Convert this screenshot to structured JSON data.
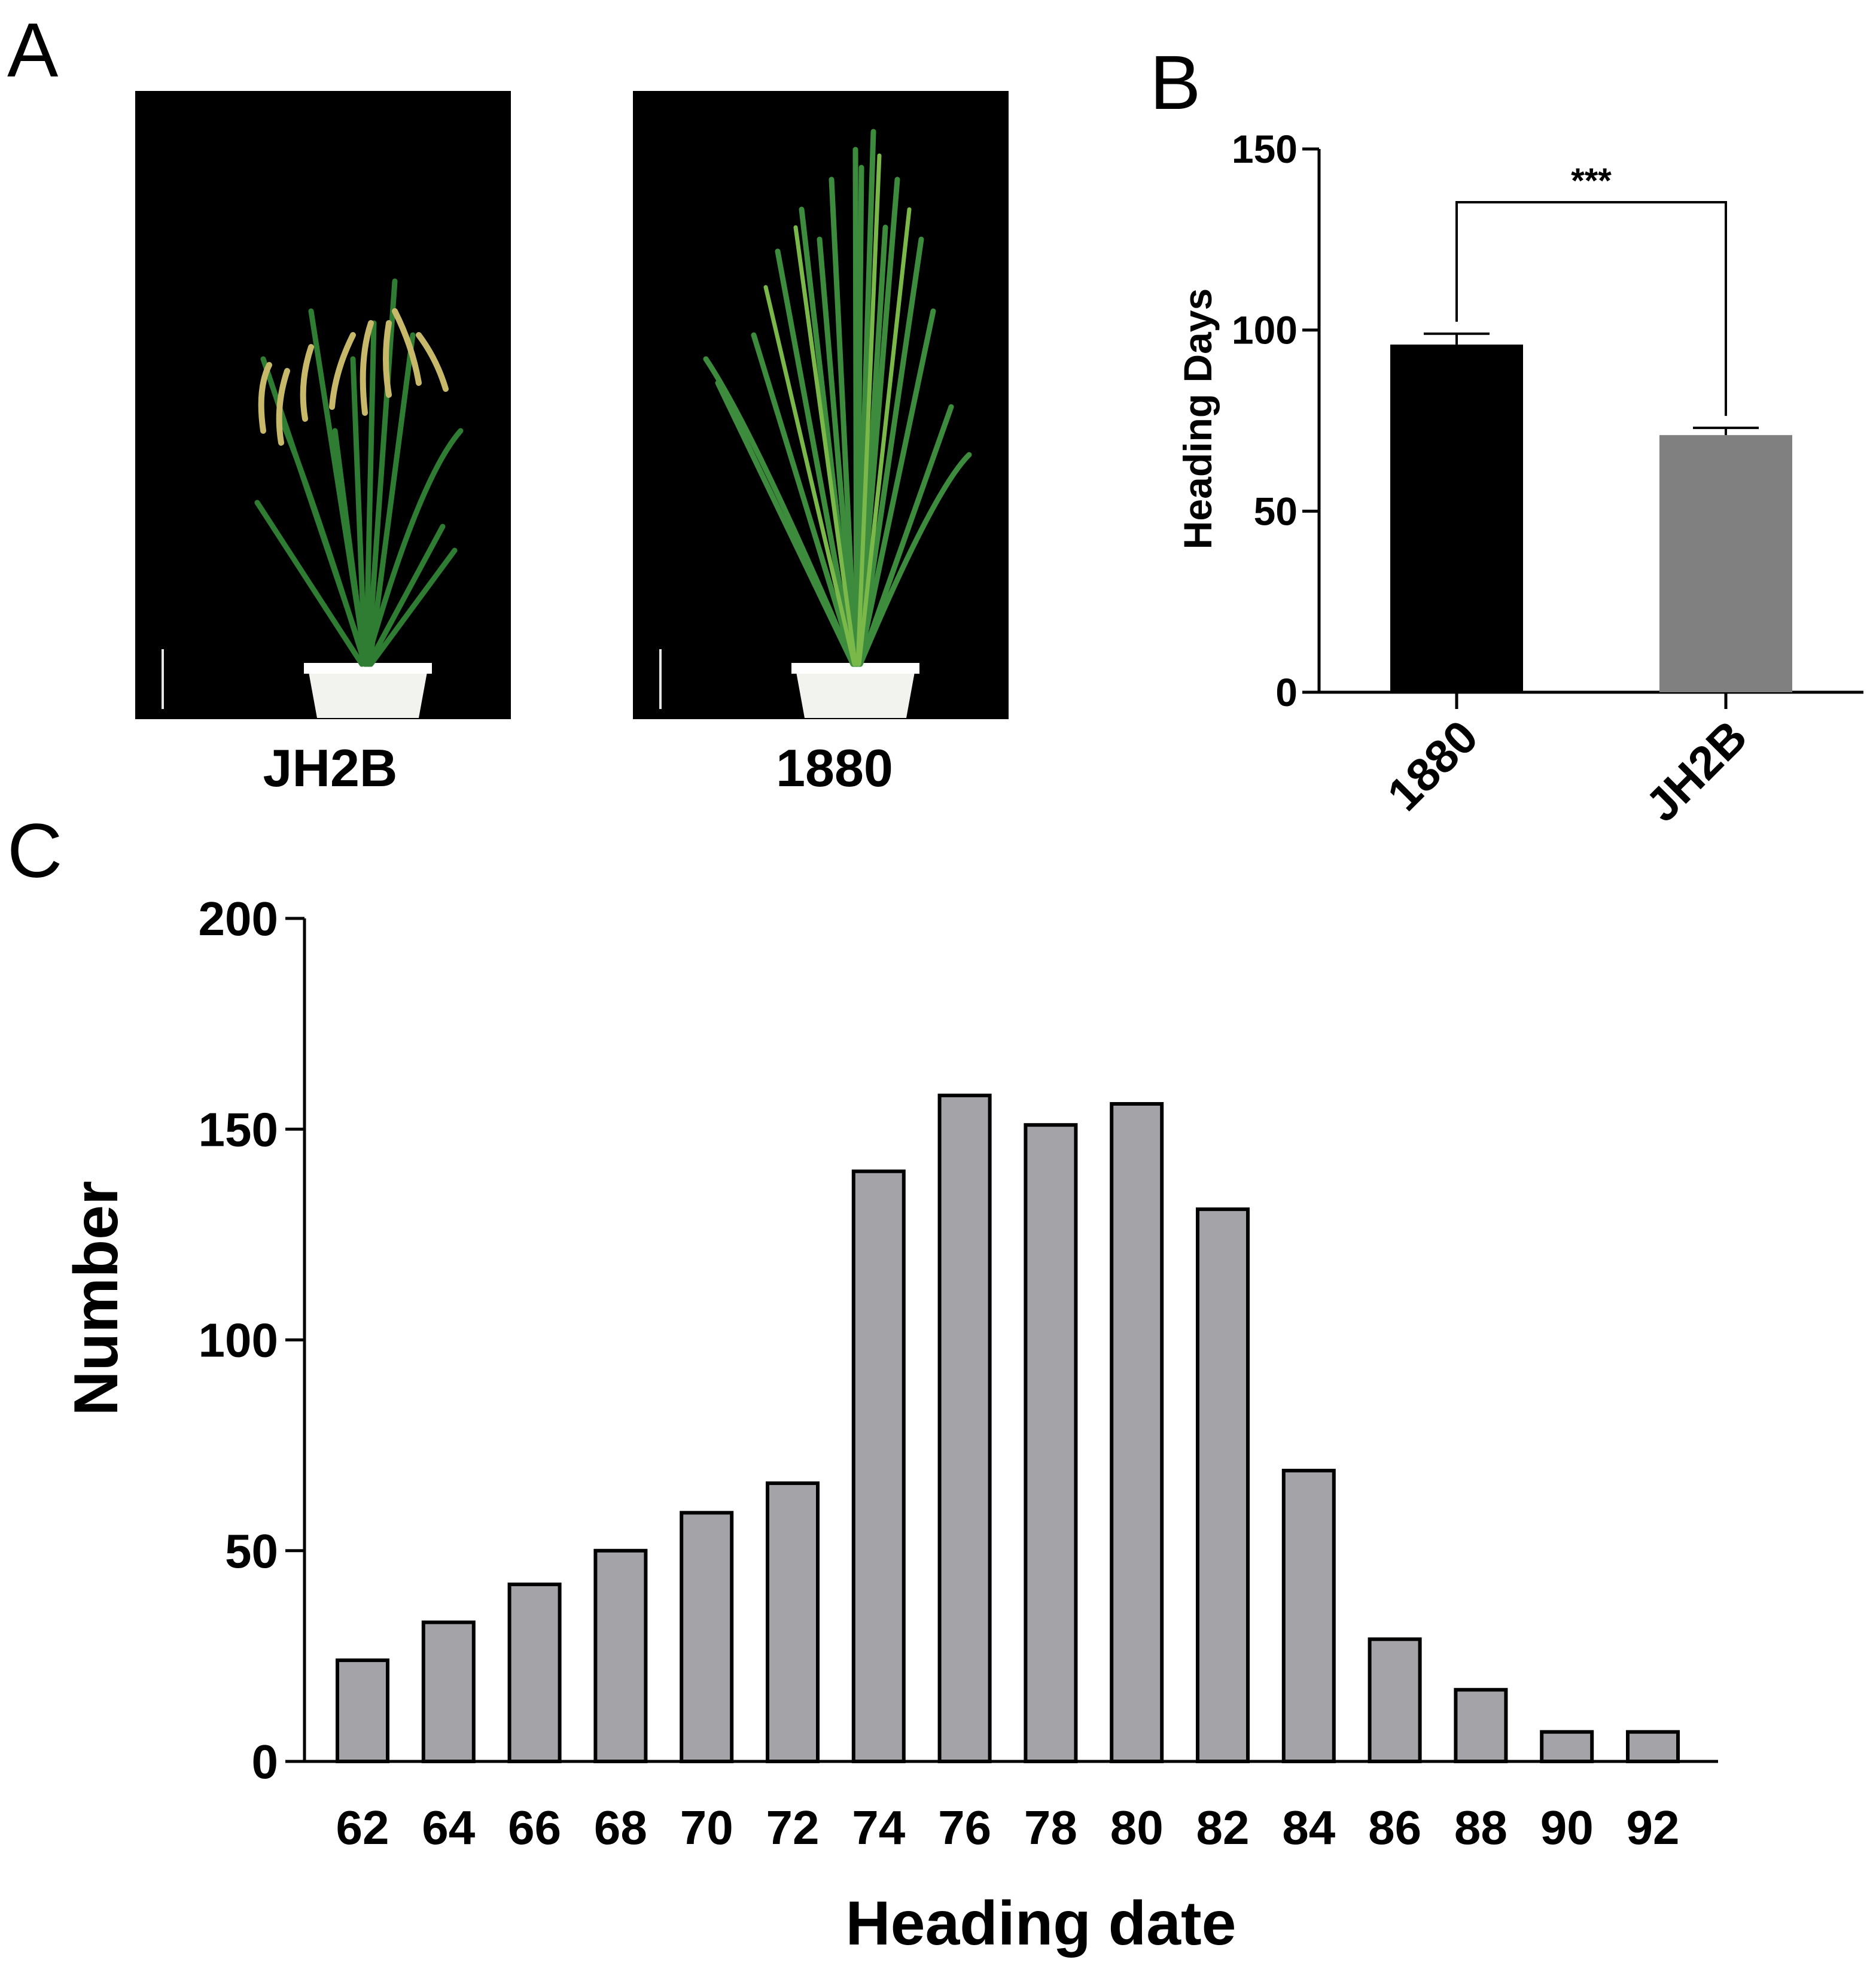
{
  "panels": {
    "a": {
      "letter": "A",
      "labels": [
        "JH2B",
        "1880"
      ]
    },
    "b": {
      "letter": "B"
    },
    "c": {
      "letter": "C"
    }
  },
  "colors": {
    "bar_black": "#000000",
    "bar_gray": "#808080",
    "hist_bar": "#a3a3a8",
    "photo_bg": "#000000",
    "leaf": "#2e7d32",
    "pot": "#f2f2ee"
  },
  "chart_data": [
    {
      "id": "B",
      "type": "bar",
      "categories": [
        "1880",
        "JH2B"
      ],
      "values": [
        96,
        71
      ],
      "errors": [
        3,
        2
      ],
      "ylabel": "Heading Days",
      "xlabel": "",
      "ylim": [
        0,
        150
      ],
      "yticks": [
        "0",
        "50",
        "100",
        "150"
      ],
      "significance": "***"
    },
    {
      "id": "C",
      "type": "bar",
      "categories": [
        "62",
        "64",
        "66",
        "68",
        "70",
        "72",
        "74",
        "76",
        "78",
        "80",
        "82",
        "84",
        "86",
        "88",
        "90",
        "92"
      ],
      "values": [
        24,
        33,
        42,
        50,
        59,
        66,
        140,
        158,
        151,
        156,
        131,
        69,
        29,
        17,
        7,
        7
      ],
      "xlabel": "Heading date",
      "ylabel": "Number",
      "ylim": [
        0,
        200
      ],
      "yticks": [
        "0",
        "50",
        "100",
        "150",
        "200"
      ]
    }
  ]
}
